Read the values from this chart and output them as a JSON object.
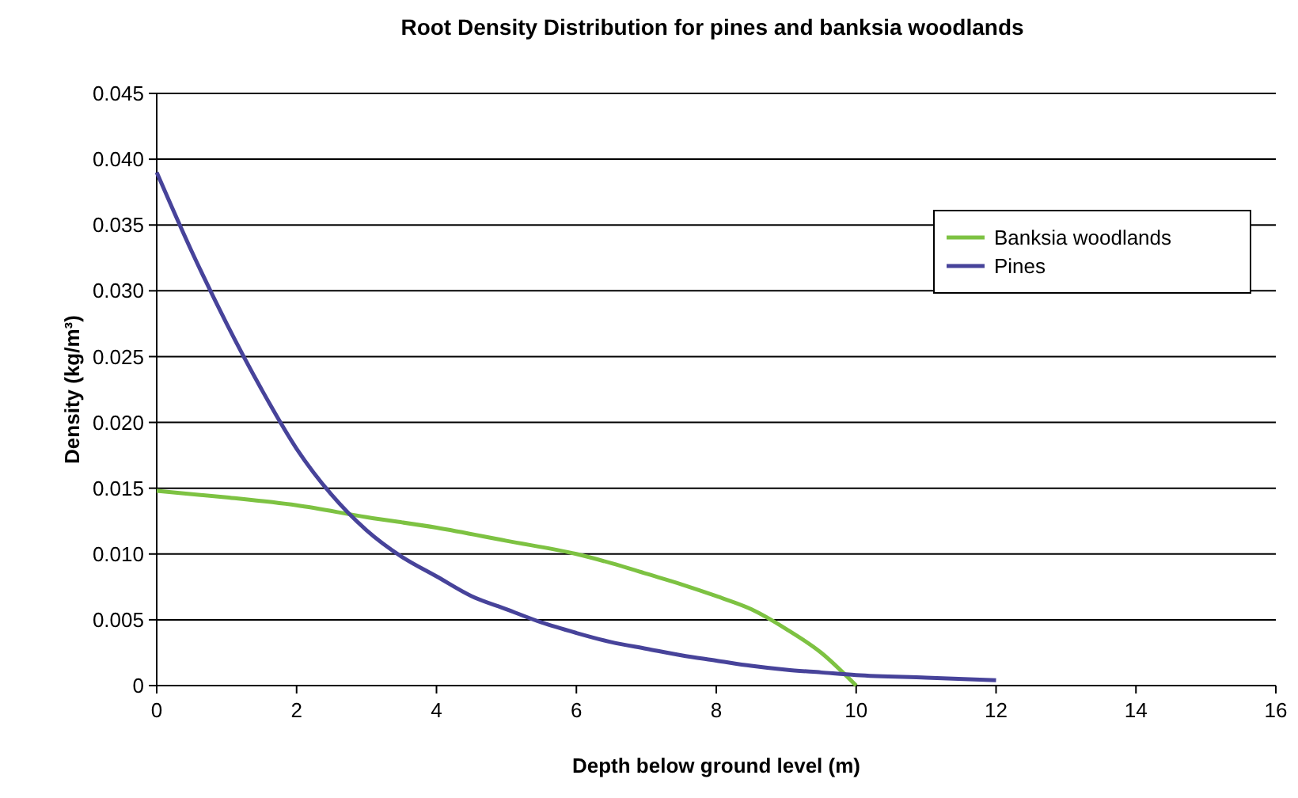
{
  "chart_data": {
    "type": "line",
    "title": "Root Density Distribution for pines and banksia woodlands",
    "xlabel": "Depth below ground level (m)",
    "ylabel": "Density (kg/m³)",
    "xlim": [
      0,
      16
    ],
    "xticks": [
      0,
      2,
      4,
      6,
      8,
      10,
      12,
      14,
      16
    ],
    "ylim": [
      0,
      0.045
    ],
    "yticks": [
      0,
      0.005,
      {
        "value": 0.01,
        "label": "0.010"
      },
      0.015,
      {
        "value": 0.02,
        "label": "0.020"
      },
      0.025,
      {
        "value": 0.03,
        "label": "0.030"
      },
      0.035,
      {
        "value": 0.04,
        "label": "0.040"
      },
      0.045
    ],
    "grid": "y",
    "legend": "top right",
    "marker": "none",
    "line_style": "solid",
    "series": [
      {
        "name": "Banksia woodlands",
        "color": "#7dc242",
        "x": [
          0,
          1,
          2,
          3,
          4,
          5,
          6,
          6.5,
          7,
          7.5,
          8,
          8.5,
          9,
          9.5,
          10
        ],
        "values": [
          0.0148,
          0.0143,
          0.0137,
          0.0128,
          0.012,
          0.011,
          0.01,
          0.0093,
          0.0085,
          0.0077,
          0.0068,
          0.0058,
          0.0043,
          0.0025,
          0
        ]
      },
      {
        "name": "Pines",
        "color": "#47439a",
        "x": [
          0,
          0.5,
          1,
          1.5,
          2,
          2.5,
          3,
          3.5,
          4,
          4.5,
          5,
          5.5,
          6,
          6.5,
          7,
          7.5,
          8,
          8.5,
          9,
          9.5,
          10,
          11,
          12
        ],
        "values": [
          0.039,
          0.033,
          0.0275,
          0.0225,
          0.018,
          0.0145,
          0.0118,
          0.0098,
          0.0083,
          0.0068,
          0.0058,
          0.0048,
          0.004,
          0.0033,
          0.0028,
          0.0023,
          0.0019,
          0.0015,
          0.0012,
          0.001,
          0.0008,
          0.0006,
          0.0004
        ]
      }
    ]
  }
}
